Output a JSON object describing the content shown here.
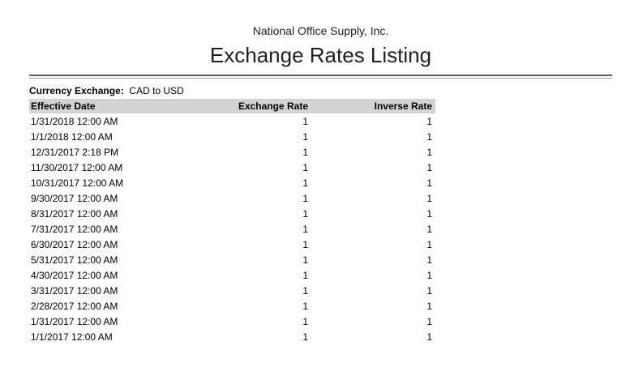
{
  "report": {
    "company": "National Office Supply, Inc.",
    "title": "Exchange Rates Listing",
    "filter_label": "Currency Exchange:",
    "filter_value": "CAD to USD"
  },
  "table": {
    "columns": [
      {
        "label": "Effective Date",
        "align": "left"
      },
      {
        "label": "Exchange Rate",
        "align": "right"
      },
      {
        "label": "Inverse Rate",
        "align": "right"
      }
    ],
    "rows": [
      {
        "effective_date": "1/31/2018 12:00 AM",
        "exchange_rate": "1",
        "inverse_rate": "1"
      },
      {
        "effective_date": "1/1/2018 12:00 AM",
        "exchange_rate": "1",
        "inverse_rate": "1"
      },
      {
        "effective_date": "12/31/2017 2:18 PM",
        "exchange_rate": "1",
        "inverse_rate": "1"
      },
      {
        "effective_date": "11/30/2017 12:00 AM",
        "exchange_rate": "1",
        "inverse_rate": "1"
      },
      {
        "effective_date": "10/31/2017 12:00 AM",
        "exchange_rate": "1",
        "inverse_rate": "1"
      },
      {
        "effective_date": "9/30/2017 12:00 AM",
        "exchange_rate": "1",
        "inverse_rate": "1"
      },
      {
        "effective_date": "8/31/2017 12:00 AM",
        "exchange_rate": "1",
        "inverse_rate": "1"
      },
      {
        "effective_date": "7/31/2017 12:00 AM",
        "exchange_rate": "1",
        "inverse_rate": "1"
      },
      {
        "effective_date": "6/30/2017 12:00 AM",
        "exchange_rate": "1",
        "inverse_rate": "1"
      },
      {
        "effective_date": "5/31/2017 12:00 AM",
        "exchange_rate": "1",
        "inverse_rate": "1"
      },
      {
        "effective_date": "4/30/2017 12:00 AM",
        "exchange_rate": "1",
        "inverse_rate": "1"
      },
      {
        "effective_date": "3/31/2017 12:00 AM",
        "exchange_rate": "1",
        "inverse_rate": "1"
      },
      {
        "effective_date": "2/28/2017 12:00 AM",
        "exchange_rate": "1",
        "inverse_rate": "1"
      },
      {
        "effective_date": "1/31/2017 12:00 AM",
        "exchange_rate": "1",
        "inverse_rate": "1"
      },
      {
        "effective_date": "1/1/2017 12:00 AM",
        "exchange_rate": "1",
        "inverse_rate": "1"
      }
    ]
  },
  "colors": {
    "header_bg": "#d3d3d3",
    "rule_dark": "#5f5f5f",
    "rule_light": "#a3a3a3",
    "text": "#000000"
  }
}
